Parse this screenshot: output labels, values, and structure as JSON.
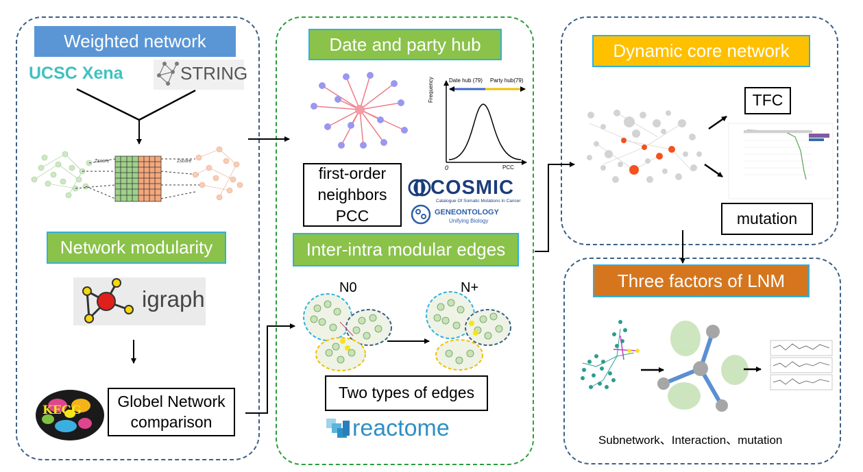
{
  "panels": {
    "left": {
      "title": "Weighted network",
      "logos": {
        "ucsc": "UCSC Xena",
        "string": "STRING",
        "igraph": "igraph",
        "kegg": "KEGG"
      },
      "matrix_labels": [
        "Zscore",
        "Zscore"
      ],
      "modularity_title": "Network modularity",
      "compare_label": "Globel Network comparison",
      "compare_line1": "Globel Network",
      "compare_line2": "comparison"
    },
    "middle": {
      "title": "Date and party hub",
      "hub_chart": {
        "ylabel": "Frequency",
        "date_hub": "Date hub (79)",
        "party_hub": "Party hub(79)",
        "xlabel": "PCC",
        "origin": "0"
      },
      "neighbors_line1": "first-order",
      "neighbors_line2": "neighbors",
      "neighbors_line3": "PCC",
      "cosmic": {
        "name": "COSMIC",
        "tagline": "Catalogue Of Somatic Mutations In Cancer"
      },
      "geneontology": {
        "name": "GENEONTOLOGY",
        "tagline": "Unifying Biology"
      },
      "modular_title": "Inter-intra modular edges",
      "n0": "N0",
      "nplus": "N+",
      "edges_label": "Two types of edges",
      "reactome": "reactome"
    },
    "right_top": {
      "title": "Dynamic core network",
      "tfc": "TFC",
      "mutation": "mutation"
    },
    "right_bottom": {
      "title": "Three factors of LNM",
      "caption": "Subnetwork、Interaction、mutation"
    }
  },
  "colors": {
    "panel_border_blue": "#3b5f85",
    "panel_border_green": "#2a9d3a",
    "title_blue": "#5a96d6",
    "title_green": "#8ac24a",
    "title_yellow": "#ffc000",
    "title_orange": "#d5761f",
    "title_outline": "#2eb0e0",
    "node_gray": "#c8c8c8",
    "node_red": "#f4511e",
    "node_purple": "#9a97f0",
    "node_green": "#b7dba5",
    "teal": "#2a9d8f"
  }
}
